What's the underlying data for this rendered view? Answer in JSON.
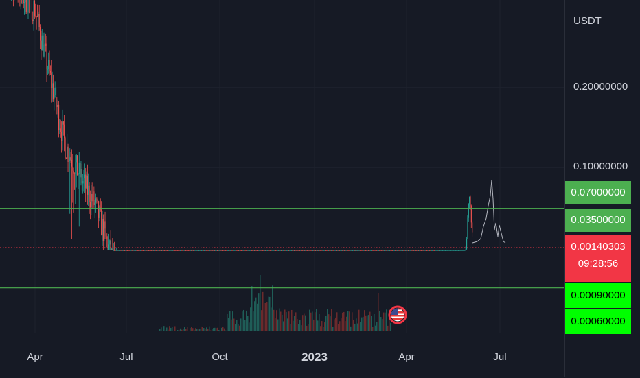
{
  "price_axis": {
    "unit": "USDT",
    "ticks": [
      "0.20000000",
      "0.10000000"
    ],
    "tags": {
      "level_high": "0.07000000",
      "level_low": "0.03500000",
      "last_price": "0.00140303",
      "countdown": "09:28:56",
      "vol_a": "0.00090000",
      "vol_b": "0.00060000"
    }
  },
  "time_axis": {
    "labels": [
      "Apr",
      "Jul",
      "Oct",
      "2023",
      "Apr",
      "Jul"
    ]
  },
  "colors": {
    "background": "#161a25",
    "up": "#26a69a",
    "down": "#ef5350",
    "level_line": "#4caf50",
    "last_price": "#f23645",
    "volume_up": "#1f5d57",
    "volume_down": "#6b2a2c"
  },
  "chart_data": {
    "type": "candlestick",
    "y_scale": "log",
    "quote_unit": "USDT",
    "x_ticks": [
      "Apr",
      "Jul",
      "Oct",
      "2023",
      "Apr",
      "Jul"
    ],
    "y_ticks": [
      0.2,
      0.1
    ],
    "horizontal_levels": [
      0.07,
      0.035
    ],
    "last_price": 0.00140303,
    "price_trend": [
      {
        "x": "Mar 2022",
        "y": 0.55
      },
      {
        "x": "Apr 2022",
        "y": 0.4
      },
      {
        "x": "May 2022",
        "y": 0.12
      },
      {
        "x": "Jun 2022",
        "y": 0.07
      },
      {
        "x": "Jul 2022",
        "y": 0.03
      },
      {
        "x": "Aug 2022",
        "y": 0.006
      },
      {
        "x": "Sep 2022",
        "y": 0.003
      },
      {
        "x": "Oct 2022",
        "y": 0.004
      },
      {
        "x": "Nov 2022",
        "y": 0.0025
      },
      {
        "x": "Dec 2022",
        "y": 0.002
      },
      {
        "x": "Jan 2023",
        "y": 0.0018
      },
      {
        "x": "Feb 2023",
        "y": 0.0016
      },
      {
        "x": "Mar 2023",
        "y": 0.0012
      },
      {
        "x": "Apr 2023",
        "y": 0.001
      },
      {
        "x": "May 2023",
        "y": 0.0011
      },
      {
        "x": "Jun 2023",
        "y": 0.08
      },
      {
        "x": "Jul 2023",
        "y": 0.0014
      }
    ]
  }
}
